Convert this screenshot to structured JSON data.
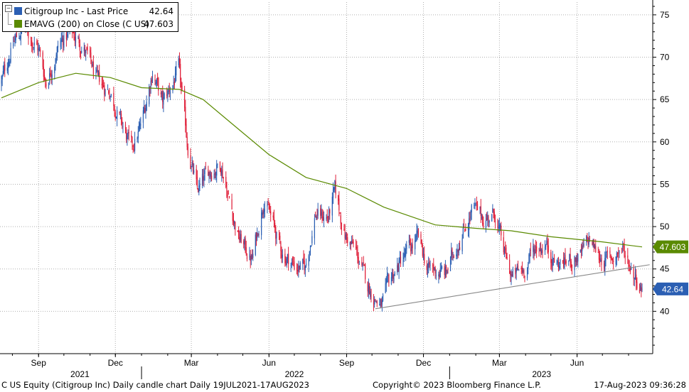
{
  "legend": {
    "items": [
      {
        "label": "Citigroup Inc - Last Price",
        "value": "42.64",
        "color": "#2b5fb3"
      },
      {
        "label": "EMAVG (200)  on Close (C US)",
        "value": "47.603",
        "color": "#5a8a00"
      }
    ]
  },
  "badges": {
    "ema": {
      "label": "47.603",
      "color": "#5a8a00"
    },
    "last": {
      "label": "42.64",
      "color": "#2b5fb3"
    }
  },
  "footer": {
    "left": "C US Equity (Citigroup Inc) Daily candle chart  Daily 19JUL2021-17AUG2023",
    "center": "Copyright© 2023 Bloomberg Finance L.P.",
    "right": "17-Aug-2023 09:36:28"
  },
  "colors": {
    "up": "#2b5fb3",
    "down": "#e0203a",
    "ema": "#5a8a00",
    "trend": "#888888",
    "grid": "#b0b0b0"
  },
  "chart_data": {
    "type": "candlestick",
    "title": "",
    "x_tick_labels": [
      "Sep",
      "Dec",
      "Mar",
      "Jun",
      "Sep",
      "Dec",
      "Mar",
      "Jun"
    ],
    "year_labels": [
      "2021",
      "2022",
      "2023"
    ],
    "y_ticks": [
      40,
      45,
      50,
      55,
      60,
      65,
      70,
      75
    ],
    "ylim": [
      35,
      76.5
    ],
    "xlim": [
      "2021-07-19",
      "2023-08-17"
    ],
    "price_path": [
      {
        "date": "2021-07-19",
        "close": 67.0
      },
      {
        "date": "2021-08-01",
        "close": 71.5
      },
      {
        "date": "2021-08-15",
        "close": 73.5
      },
      {
        "date": "2021-09-01",
        "close": 71.0
      },
      {
        "date": "2021-09-10",
        "close": 67.0
      },
      {
        "date": "2021-09-25",
        "close": 71.5
      },
      {
        "date": "2021-10-10",
        "close": 73.0
      },
      {
        "date": "2021-10-25",
        "close": 71.0
      },
      {
        "date": "2021-11-10",
        "close": 67.0
      },
      {
        "date": "2021-11-25",
        "close": 66.0
      },
      {
        "date": "2021-12-05",
        "close": 63.0
      },
      {
        "date": "2021-12-20",
        "close": 59.0
      },
      {
        "date": "2022-01-01",
        "close": 62.0
      },
      {
        "date": "2022-01-14",
        "close": 68.5
      },
      {
        "date": "2022-01-26",
        "close": 64.5
      },
      {
        "date": "2022-02-05",
        "close": 66.5
      },
      {
        "date": "2022-02-14",
        "close": 68.5
      },
      {
        "date": "2022-02-24",
        "close": 60.0
      },
      {
        "date": "2022-03-08",
        "close": 54.0
      },
      {
        "date": "2022-03-22",
        "close": 56.5
      },
      {
        "date": "2022-04-05",
        "close": 57.5
      },
      {
        "date": "2022-04-25",
        "close": 49.0
      },
      {
        "date": "2022-05-12",
        "close": 46.0
      },
      {
        "date": "2022-05-26",
        "close": 53.5
      },
      {
        "date": "2022-06-05",
        "close": 50.5
      },
      {
        "date": "2022-06-16",
        "close": 47.0
      },
      {
        "date": "2022-06-30",
        "close": 45.5
      },
      {
        "date": "2022-07-14",
        "close": 45.0
      },
      {
        "date": "2022-07-26",
        "close": 51.5
      },
      {
        "date": "2022-08-10",
        "close": 51.0
      },
      {
        "date": "2022-08-18",
        "close": 54.0
      },
      {
        "date": "2022-08-30",
        "close": 49.0
      },
      {
        "date": "2022-09-12",
        "close": 47.0
      },
      {
        "date": "2022-09-26",
        "close": 43.0
      },
      {
        "date": "2022-10-12",
        "close": 40.5
      },
      {
        "date": "2022-10-24",
        "close": 44.0
      },
      {
        "date": "2022-11-08",
        "close": 46.5
      },
      {
        "date": "2022-11-25",
        "close": 48.5
      },
      {
        "date": "2022-12-06",
        "close": 45.0
      },
      {
        "date": "2022-12-28",
        "close": 44.5
      },
      {
        "date": "2023-01-10",
        "close": 48.0
      },
      {
        "date": "2023-01-28",
        "close": 52.0
      },
      {
        "date": "2023-02-10",
        "close": 51.0
      },
      {
        "date": "2023-02-24",
        "close": 51.5
      },
      {
        "date": "2023-03-06",
        "close": 47.0
      },
      {
        "date": "2023-03-16",
        "close": 44.0
      },
      {
        "date": "2023-03-30",
        "close": 45.0
      },
      {
        "date": "2023-04-12",
        "close": 47.5
      },
      {
        "date": "2023-04-25",
        "close": 48.0
      },
      {
        "date": "2023-05-08",
        "close": 45.5
      },
      {
        "date": "2023-05-22",
        "close": 46.0
      },
      {
        "date": "2023-06-05",
        "close": 46.5
      },
      {
        "date": "2023-06-16",
        "close": 48.5
      },
      {
        "date": "2023-06-26",
        "close": 46.5
      },
      {
        "date": "2023-07-10",
        "close": 46.0
      },
      {
        "date": "2023-07-24",
        "close": 47.5
      },
      {
        "date": "2023-08-03",
        "close": 45.5
      },
      {
        "date": "2023-08-17",
        "close": 42.64
      }
    ],
    "ema_200": [
      {
        "date": "2021-07-19",
        "value": 65.2
      },
      {
        "date": "2021-09-01",
        "value": 67.0
      },
      {
        "date": "2021-10-15",
        "value": 68.1
      },
      {
        "date": "2021-11-25",
        "value": 67.6
      },
      {
        "date": "2022-01-01",
        "value": 66.4
      },
      {
        "date": "2022-02-15",
        "value": 66.2
      },
      {
        "date": "2022-03-15",
        "value": 65.0
      },
      {
        "date": "2022-04-20",
        "value": 62.0
      },
      {
        "date": "2022-06-01",
        "value": 58.5
      },
      {
        "date": "2022-07-15",
        "value": 55.8
      },
      {
        "date": "2022-09-01",
        "value": 54.5
      },
      {
        "date": "2022-10-15",
        "value": 52.3
      },
      {
        "date": "2022-12-15",
        "value": 50.2
      },
      {
        "date": "2023-02-01",
        "value": 49.8
      },
      {
        "date": "2023-03-15",
        "value": 49.5
      },
      {
        "date": "2023-05-01",
        "value": 48.8
      },
      {
        "date": "2023-07-01",
        "value": 48.2
      },
      {
        "date": "2023-08-17",
        "value": 47.603
      }
    ],
    "trendline": [
      {
        "date": "2022-10-05",
        "value": 40.3
      },
      {
        "date": "2023-08-26",
        "value": 45.5
      }
    ]
  }
}
